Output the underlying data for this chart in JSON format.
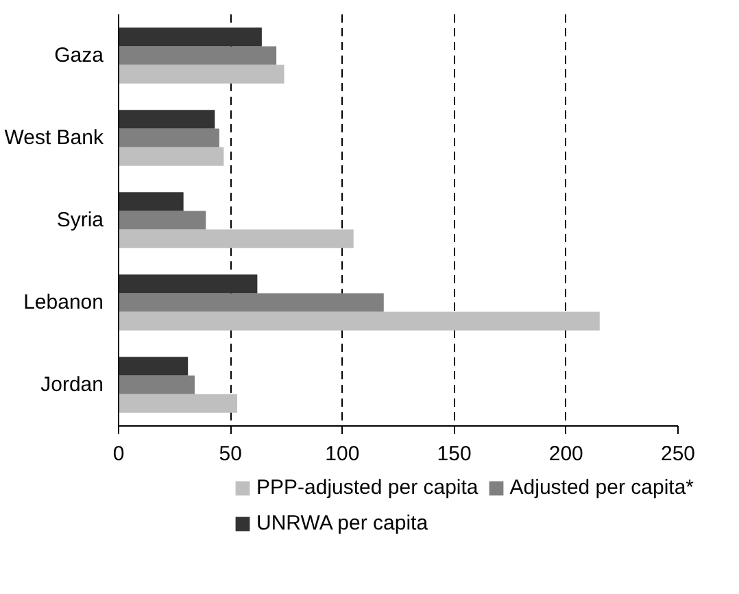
{
  "chart_data": {
    "type": "bar",
    "orientation": "horizontal",
    "categories": [
      "Gaza",
      "West Bank",
      "Syria",
      "Lebanon",
      "Jordan"
    ],
    "series": [
      {
        "name": "PPP-adjusted per capita",
        "color": "#bfbfbf",
        "values": [
          74,
          47,
          105,
          215,
          53
        ]
      },
      {
        "name": "Adjusted per capita*",
        "color": "#808080",
        "values": [
          70.5,
          45,
          39,
          118.5,
          34
        ]
      },
      {
        "name": "UNRWA per capita",
        "color": "#333333",
        "values": [
          64,
          43,
          29,
          62,
          31
        ]
      }
    ],
    "xlim": [
      0,
      250
    ],
    "xticks": [
      0,
      50,
      100,
      150,
      200,
      250
    ],
    "grid": "x",
    "legend": "bottom"
  }
}
